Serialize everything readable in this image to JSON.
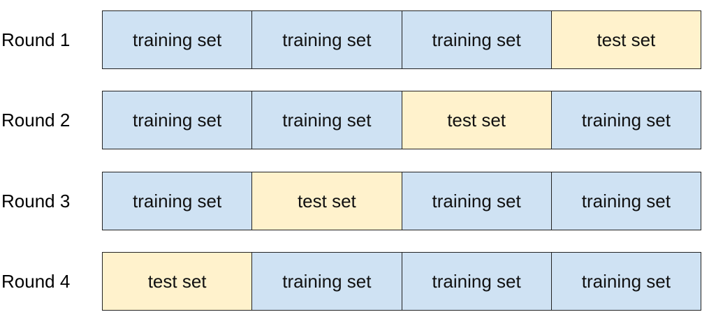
{
  "colors": {
    "training": "#cfe2f3",
    "test": "#fff2cc",
    "border": "#222222"
  },
  "rounds": [
    {
      "label": "Round 1",
      "cells": [
        {
          "text": "training set",
          "kind": "training"
        },
        {
          "text": "training set",
          "kind": "training"
        },
        {
          "text": "training set",
          "kind": "training"
        },
        {
          "text": "test set",
          "kind": "test"
        }
      ]
    },
    {
      "label": "Round 2",
      "cells": [
        {
          "text": "training set",
          "kind": "training"
        },
        {
          "text": "training set",
          "kind": "training"
        },
        {
          "text": "test set",
          "kind": "test"
        },
        {
          "text": "training set",
          "kind": "training"
        }
      ]
    },
    {
      "label": "Round 3",
      "cells": [
        {
          "text": "training set",
          "kind": "training"
        },
        {
          "text": "test set",
          "kind": "test"
        },
        {
          "text": "training set",
          "kind": "training"
        },
        {
          "text": "training set",
          "kind": "training"
        }
      ]
    },
    {
      "label": "Round 4",
      "cells": [
        {
          "text": "test set",
          "kind": "test"
        },
        {
          "text": "training set",
          "kind": "training"
        },
        {
          "text": "training set",
          "kind": "training"
        },
        {
          "text": "training set",
          "kind": "training"
        }
      ]
    }
  ]
}
